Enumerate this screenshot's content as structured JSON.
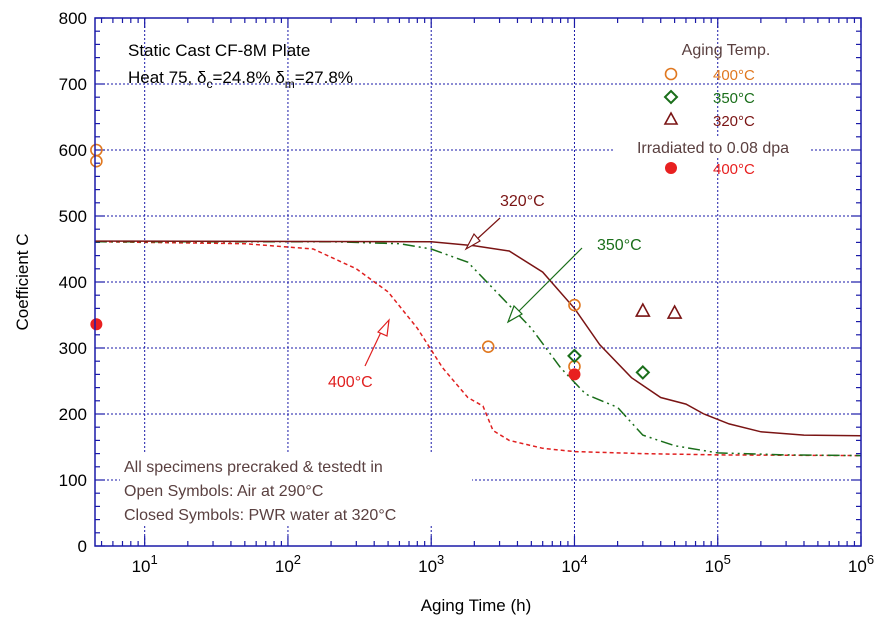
{
  "chart_data": {
    "type": "scatter",
    "xlabel": "Aging Time (h)",
    "ylabel": "Coefficient C",
    "xscale": "log",
    "xlim": [
      4.5,
      1000000
    ],
    "ylim": [
      0,
      800
    ],
    "y_ticks": [
      0,
      100,
      200,
      300,
      400,
      500,
      600,
      700,
      800
    ],
    "x_tick_labels": [
      {
        "base": "10",
        "exp": "1",
        "value": 10
      },
      {
        "base": "10",
        "exp": "2",
        "value": 100
      },
      {
        "base": "10",
        "exp": "3",
        "value": 1000
      },
      {
        "base": "10",
        "exp": "4",
        "value": 10000
      },
      {
        "base": "10",
        "exp": "5",
        "value": 100000
      },
      {
        "base": "10",
        "exp": "6",
        "value": 1000000
      }
    ],
    "grid": true,
    "colors": {
      "frame": "#1a1aa8",
      "grid": "#1a1aa8",
      "c400": "#e07820",
      "c350": "#1a6e1a",
      "c320": "#7a1414",
      "irr": "#e82020",
      "curve400": "#e02020",
      "curve350": "#1a6e1a",
      "curve320": "#7a1414",
      "note": "#5a4040"
    },
    "title_lines": {
      "line1": "Static Cast CF-8M Plate",
      "line2_prefix": "Heat 75, ",
      "delta": "δ",
      "sub_c": "c",
      "mid": "=24.8% ",
      "sub_m": "m",
      "end": "=27.8%"
    },
    "legend": {
      "header": "Aging Temp.",
      "entries": [
        {
          "label": "400°C",
          "marker": "open-circle",
          "color": "#e07820"
        },
        {
          "label": "350°C",
          "marker": "open-diamond",
          "color": "#1a6e1a"
        },
        {
          "label": "320°C",
          "marker": "open-triangle",
          "color": "#7a1414"
        }
      ],
      "irr_header": "Irradiated to 0.08 dpa",
      "irr_entry": {
        "label": "400°C",
        "marker": "filled-circle",
        "color": "#e82020"
      }
    },
    "notes": [
      "All specimens precraked & testedt in",
      "Open Symbols: Air at 290°C",
      "Closed Symbols: PWR water at 320°C"
    ],
    "curve_labels": {
      "c320": "320°C",
      "c350": "350°C",
      "c400": "400°C"
    },
    "series": [
      {
        "key": "aged400",
        "marker": "open-circle",
        "color": "#e07820",
        "points": [
          [
            4.6,
            600
          ],
          [
            4.6,
            583
          ],
          [
            2500,
            302
          ],
          [
            10000,
            365
          ],
          [
            10000,
            272
          ]
        ]
      },
      {
        "key": "aged350",
        "marker": "open-diamond",
        "color": "#1a6e1a",
        "points": [
          [
            10000,
            288
          ],
          [
            30000,
            263
          ]
        ]
      },
      {
        "key": "aged320",
        "marker": "open-triangle",
        "color": "#7a1414",
        "points": [
          [
            30000,
            356
          ],
          [
            50000,
            353
          ]
        ]
      },
      {
        "key": "irr400",
        "marker": "filled-circle",
        "color": "#e82020",
        "points": [
          [
            4.6,
            336
          ],
          [
            10000,
            260
          ]
        ]
      }
    ],
    "curves": [
      {
        "key": "curve400",
        "style": "dashed",
        "color": "#e02020",
        "points": [
          [
            4.5,
            461
          ],
          [
            50,
            458
          ],
          [
            150,
            450
          ],
          [
            300,
            420
          ],
          [
            500,
            385
          ],
          [
            800,
            330
          ],
          [
            1200,
            270
          ],
          [
            1800,
            225
          ],
          [
            2300,
            212
          ],
          [
            2700,
            175
          ],
          [
            3500,
            160
          ],
          [
            6000,
            148
          ],
          [
            10000,
            143
          ],
          [
            30000,
            140
          ],
          [
            100000,
            138
          ],
          [
            1000000,
            137
          ]
        ]
      },
      {
        "key": "curve350",
        "style": "dash-dot",
        "color": "#1a6e1a",
        "points": [
          [
            4.5,
            461
          ],
          [
            200,
            461
          ],
          [
            600,
            458
          ],
          [
            1000,
            450
          ],
          [
            1800,
            430
          ],
          [
            3000,
            380
          ],
          [
            5000,
            330
          ],
          [
            8000,
            270
          ],
          [
            12000,
            230
          ],
          [
            20000,
            210
          ],
          [
            30000,
            168
          ],
          [
            50000,
            152
          ],
          [
            100000,
            141
          ],
          [
            300000,
            138
          ],
          [
            1000000,
            137
          ]
        ]
      },
      {
        "key": "curve320",
        "style": "solid",
        "color": "#7a1414",
        "points": [
          [
            4.5,
            462
          ],
          [
            1000,
            461
          ],
          [
            2000,
            455
          ],
          [
            3500,
            447
          ],
          [
            6000,
            415
          ],
          [
            10000,
            360
          ],
          [
            15000,
            305
          ],
          [
            25000,
            255
          ],
          [
            40000,
            225
          ],
          [
            60000,
            215
          ],
          [
            80000,
            200
          ],
          [
            120000,
            185
          ],
          [
            200000,
            173
          ],
          [
            400000,
            168
          ],
          [
            1000000,
            167
          ]
        ]
      }
    ]
  }
}
